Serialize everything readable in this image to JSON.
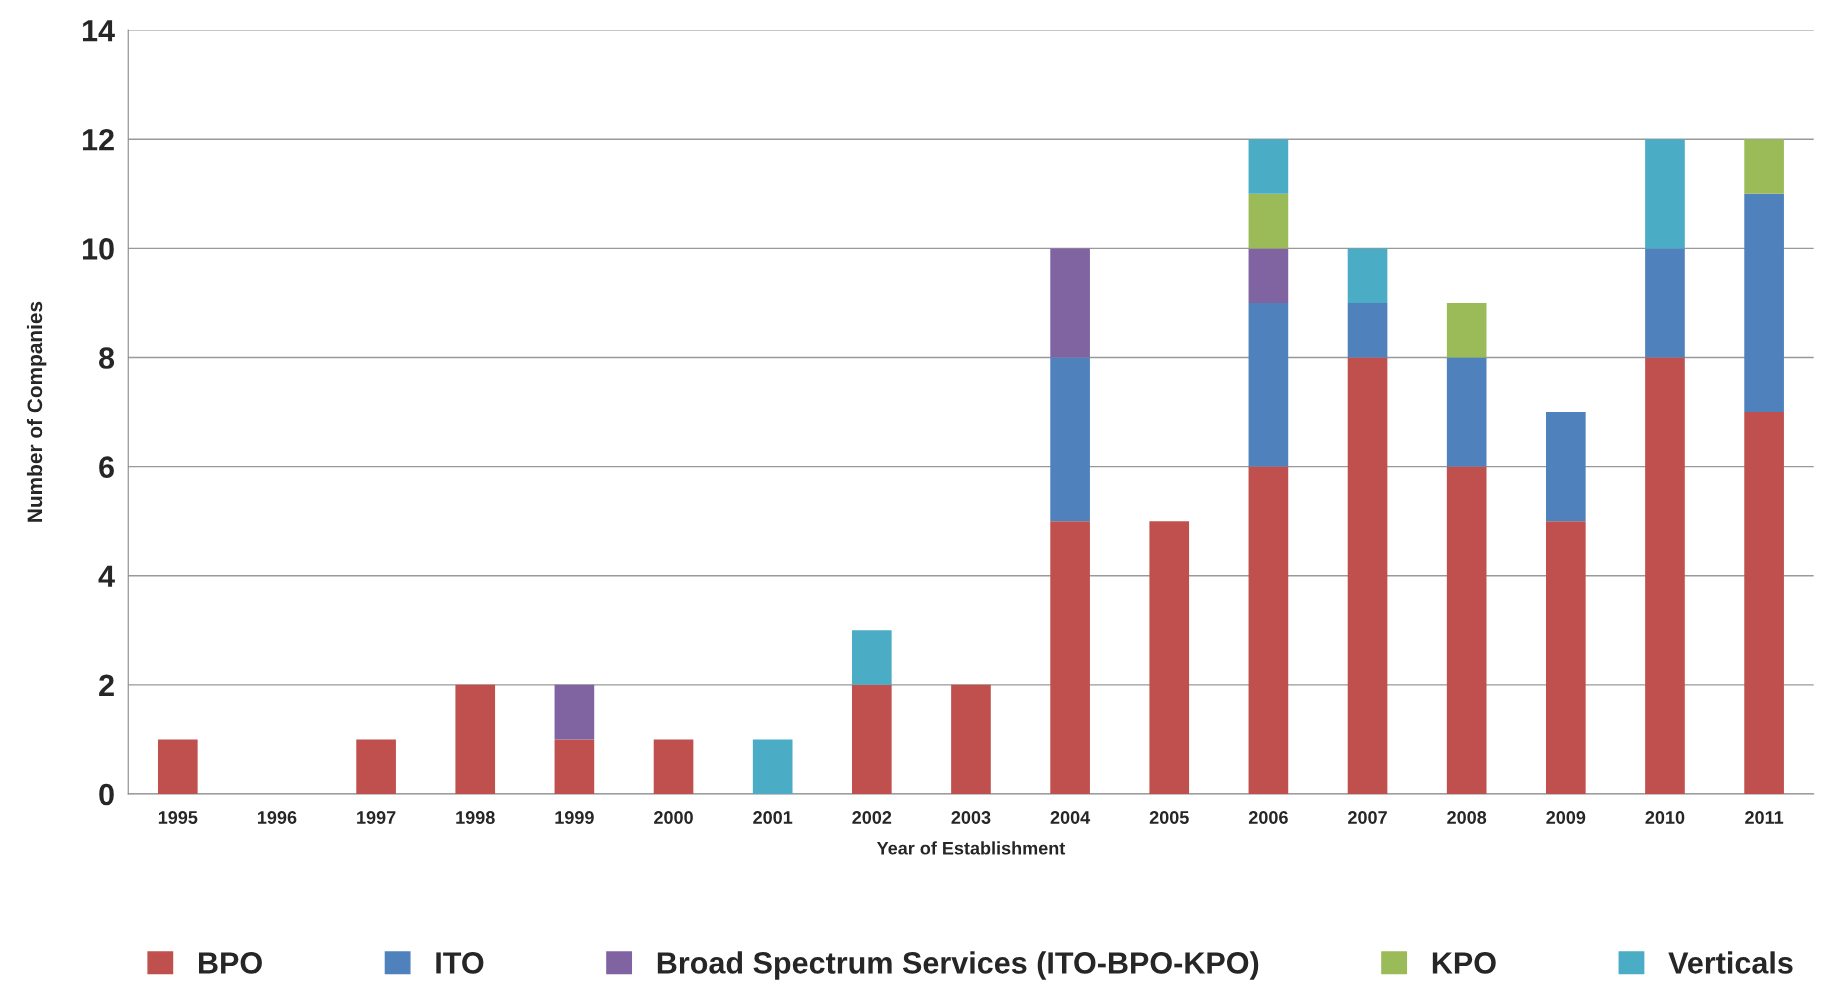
{
  "chart_data": {
    "type": "bar",
    "stacked": true,
    "xlabel": "Year of Establishment",
    "ylabel": "Number of Companies",
    "categories": [
      "1995",
      "1996",
      "1997",
      "1998",
      "1999",
      "2000",
      "2001",
      "2002",
      "2003",
      "2004",
      "2005",
      "2006",
      "2007",
      "2008",
      "2009",
      "2010",
      "2011"
    ],
    "series": [
      {
        "name": "BPO",
        "color": "#c0504d",
        "values": [
          1,
          0,
          1,
          2,
          1,
          1,
          0,
          2,
          2,
          5,
          5,
          6,
          8,
          6,
          5,
          8,
          7
        ]
      },
      {
        "name": "ITO",
        "color": "#4f81bd",
        "values": [
          0,
          0,
          0,
          0,
          0,
          0,
          0,
          0,
          0,
          3,
          0,
          3,
          1,
          2,
          2,
          2,
          4
        ]
      },
      {
        "name": "Broad Spectrum Services (ITO-BPO-KPO)",
        "color": "#8064a2",
        "values": [
          0,
          0,
          0,
          0,
          1,
          0,
          0,
          0,
          0,
          2,
          0,
          1,
          0,
          0,
          0,
          0,
          0
        ]
      },
      {
        "name": "KPO",
        "color": "#9bbb59",
        "values": [
          0,
          0,
          0,
          0,
          0,
          0,
          0,
          0,
          0,
          0,
          0,
          1,
          0,
          1,
          0,
          0,
          1
        ]
      },
      {
        "name": "Verticals",
        "color": "#4bacc6",
        "values": [
          0,
          0,
          0,
          0,
          0,
          0,
          1,
          1,
          0,
          0,
          0,
          1,
          1,
          0,
          0,
          2,
          0
        ]
      }
    ],
    "ylim": [
      0,
      14
    ],
    "yticks": [
      0,
      2,
      4,
      6,
      8,
      10,
      12,
      14
    ],
    "grid": "y",
    "legend": "bottom"
  }
}
